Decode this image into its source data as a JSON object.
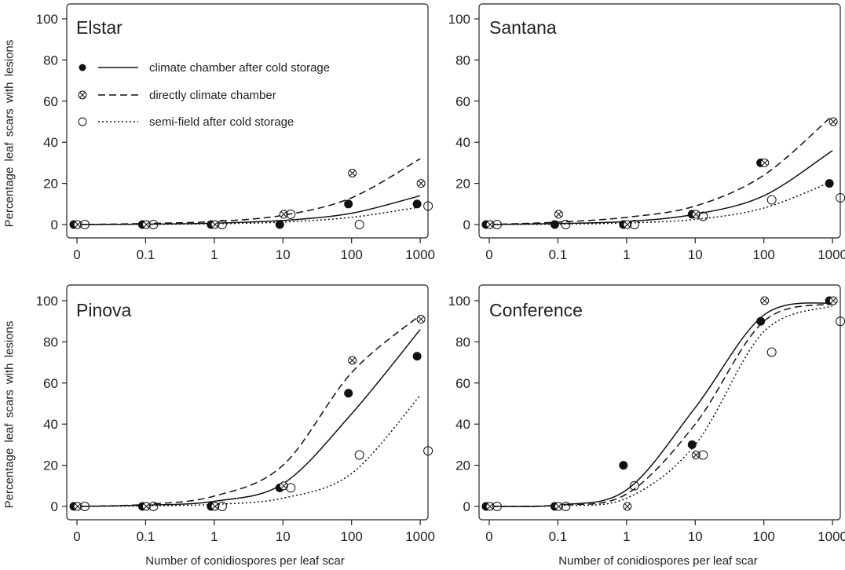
{
  "ylabel": "Percentage leaf scars with lesions",
  "xlabel": "Number of conidiospores per leaf scar",
  "legend": [
    {
      "label": "climate chamber after cold storage",
      "marker": "filled-circle",
      "line": "solid"
    },
    {
      "label": "directly climate chamber",
      "marker": "crossed-circle",
      "line": "dashed"
    },
    {
      "label": "semi-field after cold storage",
      "marker": "open-circle",
      "line": "dotted"
    }
  ],
  "colors": {
    "ink": "#111111",
    "axis": "#222222",
    "background": "#ffffff"
  },
  "chart_data": [
    {
      "type": "scatter",
      "title": "Elstar",
      "x_ticks": [
        "0",
        "0.1",
        "1",
        "10",
        "100",
        "1000"
      ],
      "x_scale": "log (with 0)",
      "ylim": [
        0,
        100
      ],
      "y_ticks": [
        0,
        20,
        40,
        60,
        80,
        100
      ],
      "legend_position": "upper-left",
      "series": [
        {
          "name": "climate chamber after cold storage",
          "x": [
            0,
            0.1,
            1,
            10,
            100,
            1000
          ],
          "y": [
            0,
            0,
            0,
            0,
            10,
            10
          ],
          "fit": {
            "style": "solid",
            "x": [
              0,
              0.1,
              1,
              10,
              100,
              1000
            ],
            "y": [
              0,
              0.2,
              0.7,
              2,
              5.5,
              14
            ]
          }
        },
        {
          "name": "directly climate chamber",
          "x": [
            0,
            0.1,
            1,
            10,
            100,
            1000
          ],
          "y": [
            0,
            0,
            0,
            5,
            25,
            20
          ],
          "fit": {
            "style": "dashed",
            "x": [
              0,
              0.1,
              1,
              10,
              100,
              1000
            ],
            "y": [
              0,
              0.5,
              1.5,
              4.5,
              13,
              32
            ]
          }
        },
        {
          "name": "semi-field after cold storage",
          "x": [
            0,
            0.1,
            1,
            10,
            100,
            1000
          ],
          "y": [
            0,
            0,
            0,
            5,
            0,
            9
          ],
          "fit": {
            "style": "dotted",
            "x": [
              0,
              0.1,
              1,
              10,
              100,
              1000
            ],
            "y": [
              0,
              0.1,
              0.4,
              1.2,
              3.5,
              8.5
            ]
          }
        }
      ]
    },
    {
      "type": "scatter",
      "title": "Santana",
      "x_ticks": [
        "0",
        "0.1",
        "1",
        "10",
        "100",
        "1000"
      ],
      "x_scale": "log (with 0)",
      "ylim": [
        0,
        100
      ],
      "y_ticks": [
        0,
        20,
        40,
        60,
        80,
        100
      ],
      "series": [
        {
          "name": "climate chamber after cold storage",
          "x": [
            0,
            0.1,
            1,
            10,
            100,
            1000
          ],
          "y": [
            0,
            0,
            0,
            5,
            30,
            20
          ],
          "fit": {
            "style": "solid",
            "x": [
              0,
              0.1,
              1,
              10,
              100,
              1000
            ],
            "y": [
              0,
              0.5,
              1.5,
              5,
              14,
              36
            ]
          }
        },
        {
          "name": "directly climate chamber",
          "x": [
            0,
            0.1,
            1,
            10,
            100,
            1000
          ],
          "y": [
            0,
            5,
            0,
            5,
            30,
            50
          ],
          "fit": {
            "style": "dashed",
            "x": [
              0,
              0.1,
              1,
              10,
              100,
              1000
            ],
            "y": [
              0,
              1.2,
              3.5,
              9,
              24,
              53
            ]
          }
        },
        {
          "name": "semi-field after cold storage",
          "x": [
            0,
            0.1,
            1,
            10,
            100,
            1000
          ],
          "y": [
            0,
            0,
            0,
            4,
            12,
            13
          ],
          "fit": {
            "style": "dotted",
            "x": [
              0,
              0.1,
              1,
              10,
              100,
              1000
            ],
            "y": [
              0,
              0.2,
              0.8,
              2.5,
              8,
              21
            ]
          }
        }
      ]
    },
    {
      "type": "scatter",
      "title": "Pinova",
      "x_ticks": [
        "0",
        "0.1",
        "1",
        "10",
        "100",
        "1000"
      ],
      "x_scale": "log (with 0)",
      "ylim": [
        0,
        100
      ],
      "y_ticks": [
        0,
        20,
        40,
        60,
        80,
        100
      ],
      "series": [
        {
          "name": "climate chamber after cold storage",
          "x": [
            0,
            0.1,
            1,
            10,
            100,
            1000
          ],
          "y": [
            0,
            0,
            0,
            9,
            55,
            73
          ],
          "fit": {
            "style": "solid",
            "x": [
              0,
              0.1,
              1,
              10,
              100,
              1000
            ],
            "y": [
              0,
              0.6,
              2.5,
              11,
              45,
              86
            ]
          }
        },
        {
          "name": "directly climate chamber",
          "x": [
            0,
            0.1,
            1,
            10,
            100,
            1000
          ],
          "y": [
            0,
            0,
            0,
            10,
            71,
            91
          ],
          "fit": {
            "style": "dashed",
            "x": [
              0,
              0.1,
              1,
              10,
              100,
              1000
            ],
            "y": [
              0,
              1,
              5,
              20,
              65,
              93
            ]
          }
        },
        {
          "name": "semi-field after cold storage",
          "x": [
            0,
            0.1,
            1,
            10,
            100,
            1000
          ],
          "y": [
            0,
            0,
            0,
            9,
            25,
            27
          ],
          "fit": {
            "style": "dotted",
            "x": [
              0,
              0.1,
              1,
              10,
              100,
              1000
            ],
            "y": [
              0,
              0.3,
              1,
              4,
              16,
              54
            ]
          }
        }
      ]
    },
    {
      "type": "scatter",
      "title": "Conference",
      "x_ticks": [
        "0",
        "0.1",
        "1",
        "10",
        "100",
        "1000"
      ],
      "x_scale": "log (with 0)",
      "ylim": [
        0,
        100
      ],
      "y_ticks": [
        0,
        20,
        40,
        60,
        80,
        100
      ],
      "series": [
        {
          "name": "climate chamber after cold storage",
          "x": [
            0,
            0.1,
            1,
            10,
            100,
            1000
          ],
          "y": [
            0,
            0,
            20,
            30,
            90,
            100
          ],
          "fit": {
            "style": "solid",
            "x": [
              0,
              0.1,
              1,
              10,
              100,
              1000
            ],
            "y": [
              0,
              0.7,
              8,
              48,
              93,
              99
            ]
          }
        },
        {
          "name": "directly climate chamber",
          "x": [
            0,
            0.1,
            1,
            10,
            100,
            1000
          ],
          "y": [
            0,
            0,
            0,
            25,
            100,
            100
          ],
          "fit": {
            "style": "dashed",
            "x": [
              0,
              0.1,
              1,
              10,
              100,
              1000
            ],
            "y": [
              0,
              0.6,
              6,
              40,
              90,
              98.5
            ]
          }
        },
        {
          "name": "semi-field after cold storage",
          "x": [
            0,
            0.1,
            1,
            10,
            100,
            1000
          ],
          "y": [
            0,
            0,
            10,
            25,
            75,
            90
          ],
          "fit": {
            "style": "dotted",
            "x": [
              0,
              0.1,
              1,
              10,
              100,
              1000
            ],
            "y": [
              0,
              0.4,
              4,
              30,
              85,
              97.5
            ]
          }
        }
      ]
    }
  ]
}
